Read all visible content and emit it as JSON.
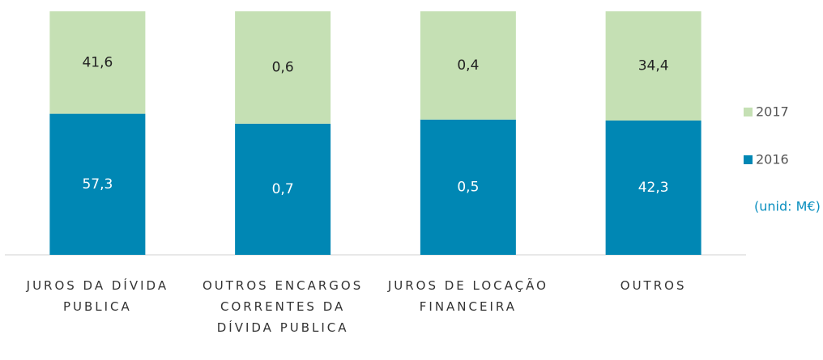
{
  "chart_data": {
    "type": "stacked_bar_percent",
    "categories": [
      "JUROS DA DÍVIDA PUBLICA",
      "OUTROS ENCARGOS CORRENTES DA DÍVIDA PUBLICA",
      "JUROS DE LOCAÇÃO FINANCEIRA",
      "OUTROS"
    ],
    "series": [
      {
        "name": "2016",
        "color": "#0087b4",
        "values": [
          57.3,
          0.7,
          0.5,
          42.3
        ],
        "value_labels": [
          "57,3",
          "0,7",
          "0,5",
          "42,3"
        ]
      },
      {
        "name": "2017",
        "color": "#c5e0b4",
        "values": [
          41.6,
          0.6,
          0.4,
          34.4
        ],
        "value_labels": [
          "41,6",
          "0,6",
          "0,4",
          "34,4"
        ]
      }
    ],
    "legend": "right",
    "annotation": "(unid: M€)"
  }
}
